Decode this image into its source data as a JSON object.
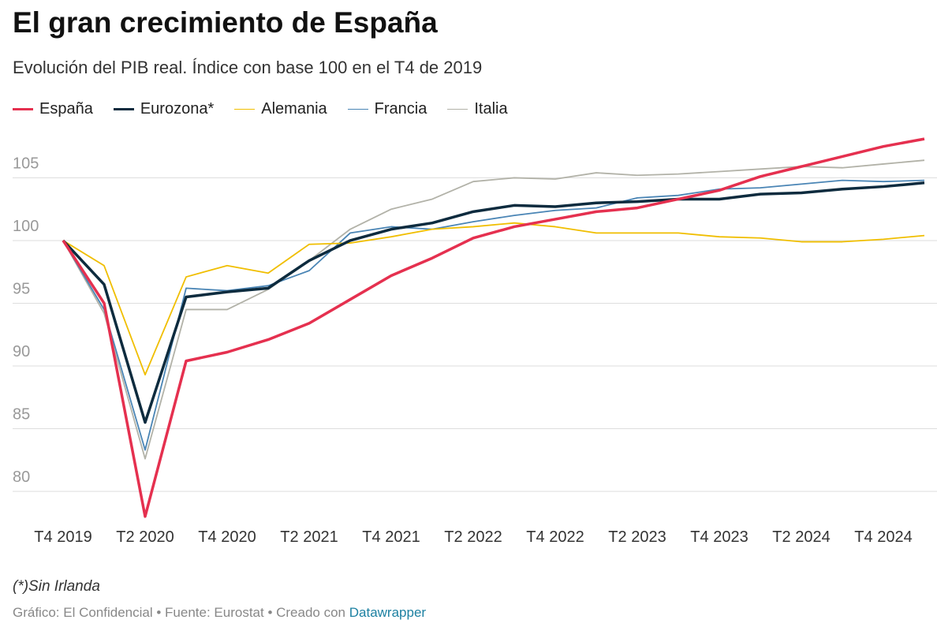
{
  "chart_data": {
    "type": "line",
    "title": "El gran crecimiento de España",
    "subtitle": "Evolución del PIB real. Índice con base 100 en el T4 de 2019",
    "note": "(*)Sin Irlanda",
    "source": "Gráfico: El Confidencial • Fuente: Eurostat • Creado con",
    "source_link": "Datawrapper",
    "categories": [
      "T4 2019",
      null,
      "T2 2020",
      null,
      "T4 2020",
      null,
      "T2 2021",
      null,
      "T4 2021",
      null,
      "T2 2022",
      null,
      "T4 2022",
      null,
      "T2 2023",
      null,
      "T4 2023",
      null,
      "T2 2024",
      null,
      "T4 2024",
      null
    ],
    "ylim": [
      77.8,
      108.8
    ],
    "yticks": [
      80,
      85,
      90,
      95,
      100,
      105
    ],
    "grid": true,
    "series": [
      {
        "name": "España",
        "color": "#e5304f",
        "width": 3.5,
        "values": [
          100,
          95.0,
          78.0,
          90.4,
          91.1,
          92.1,
          93.4,
          95.3,
          97.2,
          98.6,
          100.2,
          101.1,
          101.7,
          102.3,
          102.6,
          103.3,
          104.0,
          105.1,
          105.9,
          106.7,
          107.5,
          108.1
        ]
      },
      {
        "name": "Eurozona*",
        "color": "#0d2b3e",
        "width": 3.5,
        "values": [
          100,
          96.5,
          85.5,
          95.5,
          95.9,
          96.2,
          98.4,
          100.0,
          100.9,
          101.4,
          102.3,
          102.8,
          102.7,
          103.0,
          103.1,
          103.3,
          103.3,
          103.7,
          103.8,
          104.1,
          104.3,
          104.6
        ]
      },
      {
        "name": "Alemania",
        "color": "#f0be00",
        "width": 1.8,
        "values": [
          100,
          98.0,
          89.3,
          97.1,
          98.0,
          97.4,
          99.7,
          99.8,
          100.3,
          100.9,
          101.1,
          101.4,
          101.1,
          100.6,
          100.6,
          100.6,
          100.3,
          100.2,
          99.9,
          99.9,
          100.1,
          100.4
        ]
      },
      {
        "name": "Francia",
        "color": "#4a85b5",
        "width": 1.8,
        "values": [
          100,
          94.5,
          83.3,
          96.2,
          96.0,
          96.4,
          97.6,
          100.6,
          101.1,
          100.9,
          101.5,
          102.0,
          102.4,
          102.6,
          103.4,
          103.6,
          104.1,
          104.2,
          104.5,
          104.8,
          104.7,
          104.8
        ]
      },
      {
        "name": "Italia",
        "color": "#b2b2a8",
        "width": 1.8,
        "values": [
          100,
          94.2,
          82.6,
          94.5,
          94.5,
          96.1,
          98.4,
          100.9,
          102.5,
          103.3,
          104.7,
          105.0,
          104.9,
          105.4,
          105.2,
          105.3,
          105.5,
          105.7,
          105.9,
          105.8,
          106.1,
          106.4
        ]
      }
    ]
  }
}
